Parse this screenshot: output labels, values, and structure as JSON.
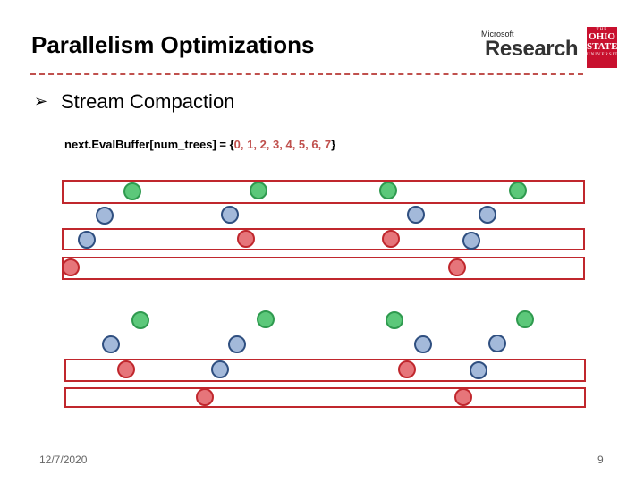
{
  "slide": {
    "title": "Parallelism Optimizations",
    "bullet": "Stream Compaction",
    "code": {
      "prefix": "next.EvalBuffer[num_trees] = {",
      "values": "0, 1, 2, 3, 4, 5, 6, 7",
      "suffix": "}"
    },
    "date": "12/7/2020",
    "page_number": "9"
  },
  "logos": {
    "microsoft_small": "Microsoft",
    "microsoft_big": "Research",
    "osu_lines": [
      "THE",
      "OHIO",
      "STATE",
      "UNIVERSITY"
    ]
  },
  "colors": {
    "green_fill": "#5cc87a",
    "green_stroke": "#2f9a4f",
    "blue_fill": "#a3b9da",
    "blue_stroke": "#2f4f80",
    "red_fill": "#e6757a",
    "red_stroke": "#c0272d",
    "bar_stroke": "#c0272d",
    "divider": "#c0504d"
  }
}
